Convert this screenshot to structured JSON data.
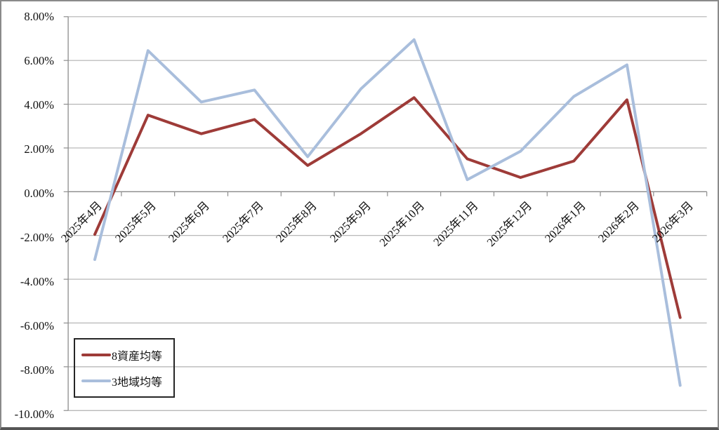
{
  "chart_data": {
    "type": "line",
    "title": "",
    "xlabel": "",
    "ylabel": "",
    "categories": [
      "2025年4月",
      "2025年5月",
      "2025年6月",
      "2025年7月",
      "2025年8月",
      "2025年9月",
      "2025年10月",
      "2025年11月",
      "2025年12月",
      "2026年1月",
      "2026年2月",
      "2026年3月"
    ],
    "series": [
      {
        "name": "8資産均等",
        "color": "#9E3B38",
        "values": [
          -1.95,
          3.5,
          2.65,
          3.3,
          1.2,
          2.65,
          4.3,
          1.5,
          0.65,
          1.4,
          4.2,
          -5.75
        ]
      },
      {
        "name": "3地域均等",
        "color": "#A9BEDC",
        "values": [
          -3.1,
          6.45,
          4.1,
          4.65,
          1.6,
          4.7,
          6.95,
          0.55,
          1.85,
          4.35,
          5.8,
          -8.85
        ]
      }
    ],
    "ylim": [
      -10,
      8
    ],
    "y_tick_step": 2,
    "y_tick_labels": [
      "8.00%",
      "6.00%",
      "4.00%",
      "2.00%",
      "0.00%",
      "-2.00%",
      "-4.00%",
      "-6.00%",
      "-8.00%",
      "-10.00%"
    ],
    "grid": true,
    "legend_position": "inside-bottom-left"
  },
  "colors": {
    "background": "#FFFFFF",
    "gridline": "#B0B0B0",
    "axis": "#8C8C8C",
    "frame": "#8A8A8A",
    "frame_bottom": "#565656",
    "legend_border": "#262626"
  }
}
